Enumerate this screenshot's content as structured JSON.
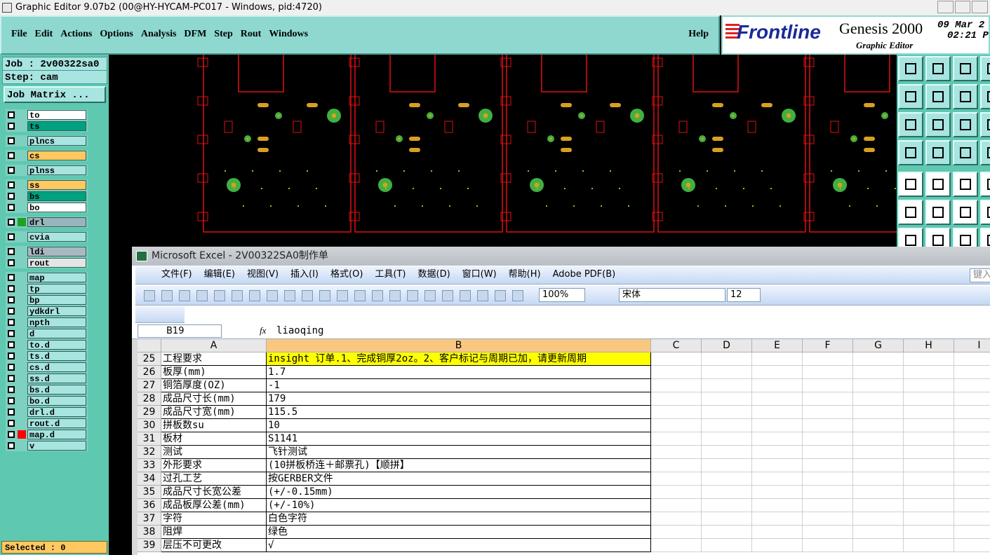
{
  "window_title": "Graphic Editor 9.07b2 (00@HY-HYCAM-PC017 - Windows, pid:4720)",
  "menu": [
    "File",
    "Edit",
    "Actions",
    "Options",
    "Analysis",
    "DFM",
    "Step",
    "Rout",
    "Windows"
  ],
  "help": "Help",
  "brand": {
    "logo": "Frontline",
    "product": "Genesis 2000",
    "subtitle": "Graphic Editor",
    "date": "09 Mar 2",
    "time": "02:21 P"
  },
  "job_panel": {
    "job": "Job : 2v00322sa0",
    "step": "Step: cam",
    "job_matrix": "Job Matrix ...",
    "layer_groups": [
      [
        {
          "name": "to",
          "color": "#ffffff"
        },
        {
          "name": "ts",
          "color": "#00a080"
        }
      ],
      [
        {
          "name": "plncs",
          "color": "#a8e4e0"
        }
      ],
      [
        {
          "name": "cs",
          "color": "#ffc860"
        }
      ],
      [
        {
          "name": "plnss",
          "color": "#a8e4e0"
        }
      ],
      [
        {
          "name": "ss",
          "color": "#ffc860"
        },
        {
          "name": "bs",
          "color": "#00a080"
        },
        {
          "name": "bo",
          "color": "#ffffff"
        }
      ],
      [
        {
          "name": "drl",
          "color": "#98b4bc",
          "marker": "#20a020"
        }
      ],
      [
        {
          "name": "cvia",
          "color": "#a8e4e0"
        }
      ],
      [
        {
          "name": "ldi",
          "color": "#a8b8c0"
        },
        {
          "name": "rout",
          "color": "#e4e4e4"
        }
      ],
      [
        {
          "name": "map",
          "color": "#a8e4e0"
        },
        {
          "name": "tp",
          "color": "#a8e4e0"
        },
        {
          "name": "bp",
          "color": "#a8e4e0"
        },
        {
          "name": "ydkdrl",
          "color": "#a8e4e0"
        },
        {
          "name": "npth",
          "color": "#a8e4e0"
        },
        {
          "name": "d",
          "color": "#a8e4e0"
        },
        {
          "name": "to.d",
          "color": "#a8e4e0"
        },
        {
          "name": "ts.d",
          "color": "#a8e4e0"
        },
        {
          "name": "cs.d",
          "color": "#a8e4e0"
        },
        {
          "name": "ss.d",
          "color": "#a8e4e0"
        },
        {
          "name": "bs.d",
          "color": "#a8e4e0"
        },
        {
          "name": "bo.d",
          "color": "#a8e4e0"
        },
        {
          "name": "drl.d",
          "color": "#a8e4e0"
        },
        {
          "name": "rout.d",
          "color": "#a8e4e0"
        },
        {
          "name": "map.d",
          "color": "#a8e4e0",
          "marker": "#ff0000"
        },
        {
          "name": "v",
          "color": "#a8e4e0"
        }
      ]
    ],
    "selected": "Selected : 0"
  },
  "excel": {
    "title": "Microsoft Excel - 2V00322SA0制作单",
    "menu": [
      "文件(F)",
      "编辑(E)",
      "视图(V)",
      "插入(I)",
      "格式(O)",
      "工具(T)",
      "数据(D)",
      "窗口(W)",
      "帮助(H)",
      "Adobe PDF(B)"
    ],
    "search": "键入",
    "zoom": "100%",
    "font": "宋体",
    "font_size": "12",
    "name_box": "B19",
    "fx": "fx",
    "formula": "liaoqing",
    "columns": [
      "A",
      "B",
      "C",
      "D",
      "E",
      "F",
      "G",
      "H",
      "I"
    ],
    "rows": [
      {
        "n": "25",
        "a": "工程要求",
        "b": "insight 订单.1、完成铜厚2oz。2、客户标记与周期已加，请更新周期",
        "fill": "#ffff00"
      },
      {
        "n": "26",
        "a": "板厚(mm)",
        "b": "1.7"
      },
      {
        "n": "27",
        "a": "铜箔厚度(OZ)",
        "b": "-1"
      },
      {
        "n": "28",
        "a": "成品尺寸长(mm)",
        "b": "179"
      },
      {
        "n": "29",
        "a": "成品尺寸宽(mm)",
        "b": "115.5"
      },
      {
        "n": "30",
        "a": "拼板数su",
        "b": "10"
      },
      {
        "n": "31",
        "a": "板材",
        "b": "S1141"
      },
      {
        "n": "32",
        "a": "测试",
        "b": "飞针测试"
      },
      {
        "n": "33",
        "a": "外形要求",
        "b": "(10拼板桥连＋邮票孔)【顺拼】"
      },
      {
        "n": "34",
        "a": "过孔工艺",
        "b": "按GERBER文件"
      },
      {
        "n": "35",
        "a": "成品尺寸长宽公差",
        "b": "(+/-0.15mm)"
      },
      {
        "n": "36",
        "a": "成品板厚公差(mm)",
        "b": "(+/-10%)"
      },
      {
        "n": "37",
        "a": "字符",
        "b": "白色字符"
      },
      {
        "n": "38",
        "a": "阻焊",
        "b": "绿色"
      },
      {
        "n": "39",
        "a": "层压不可更改",
        "b": "√"
      }
    ]
  }
}
